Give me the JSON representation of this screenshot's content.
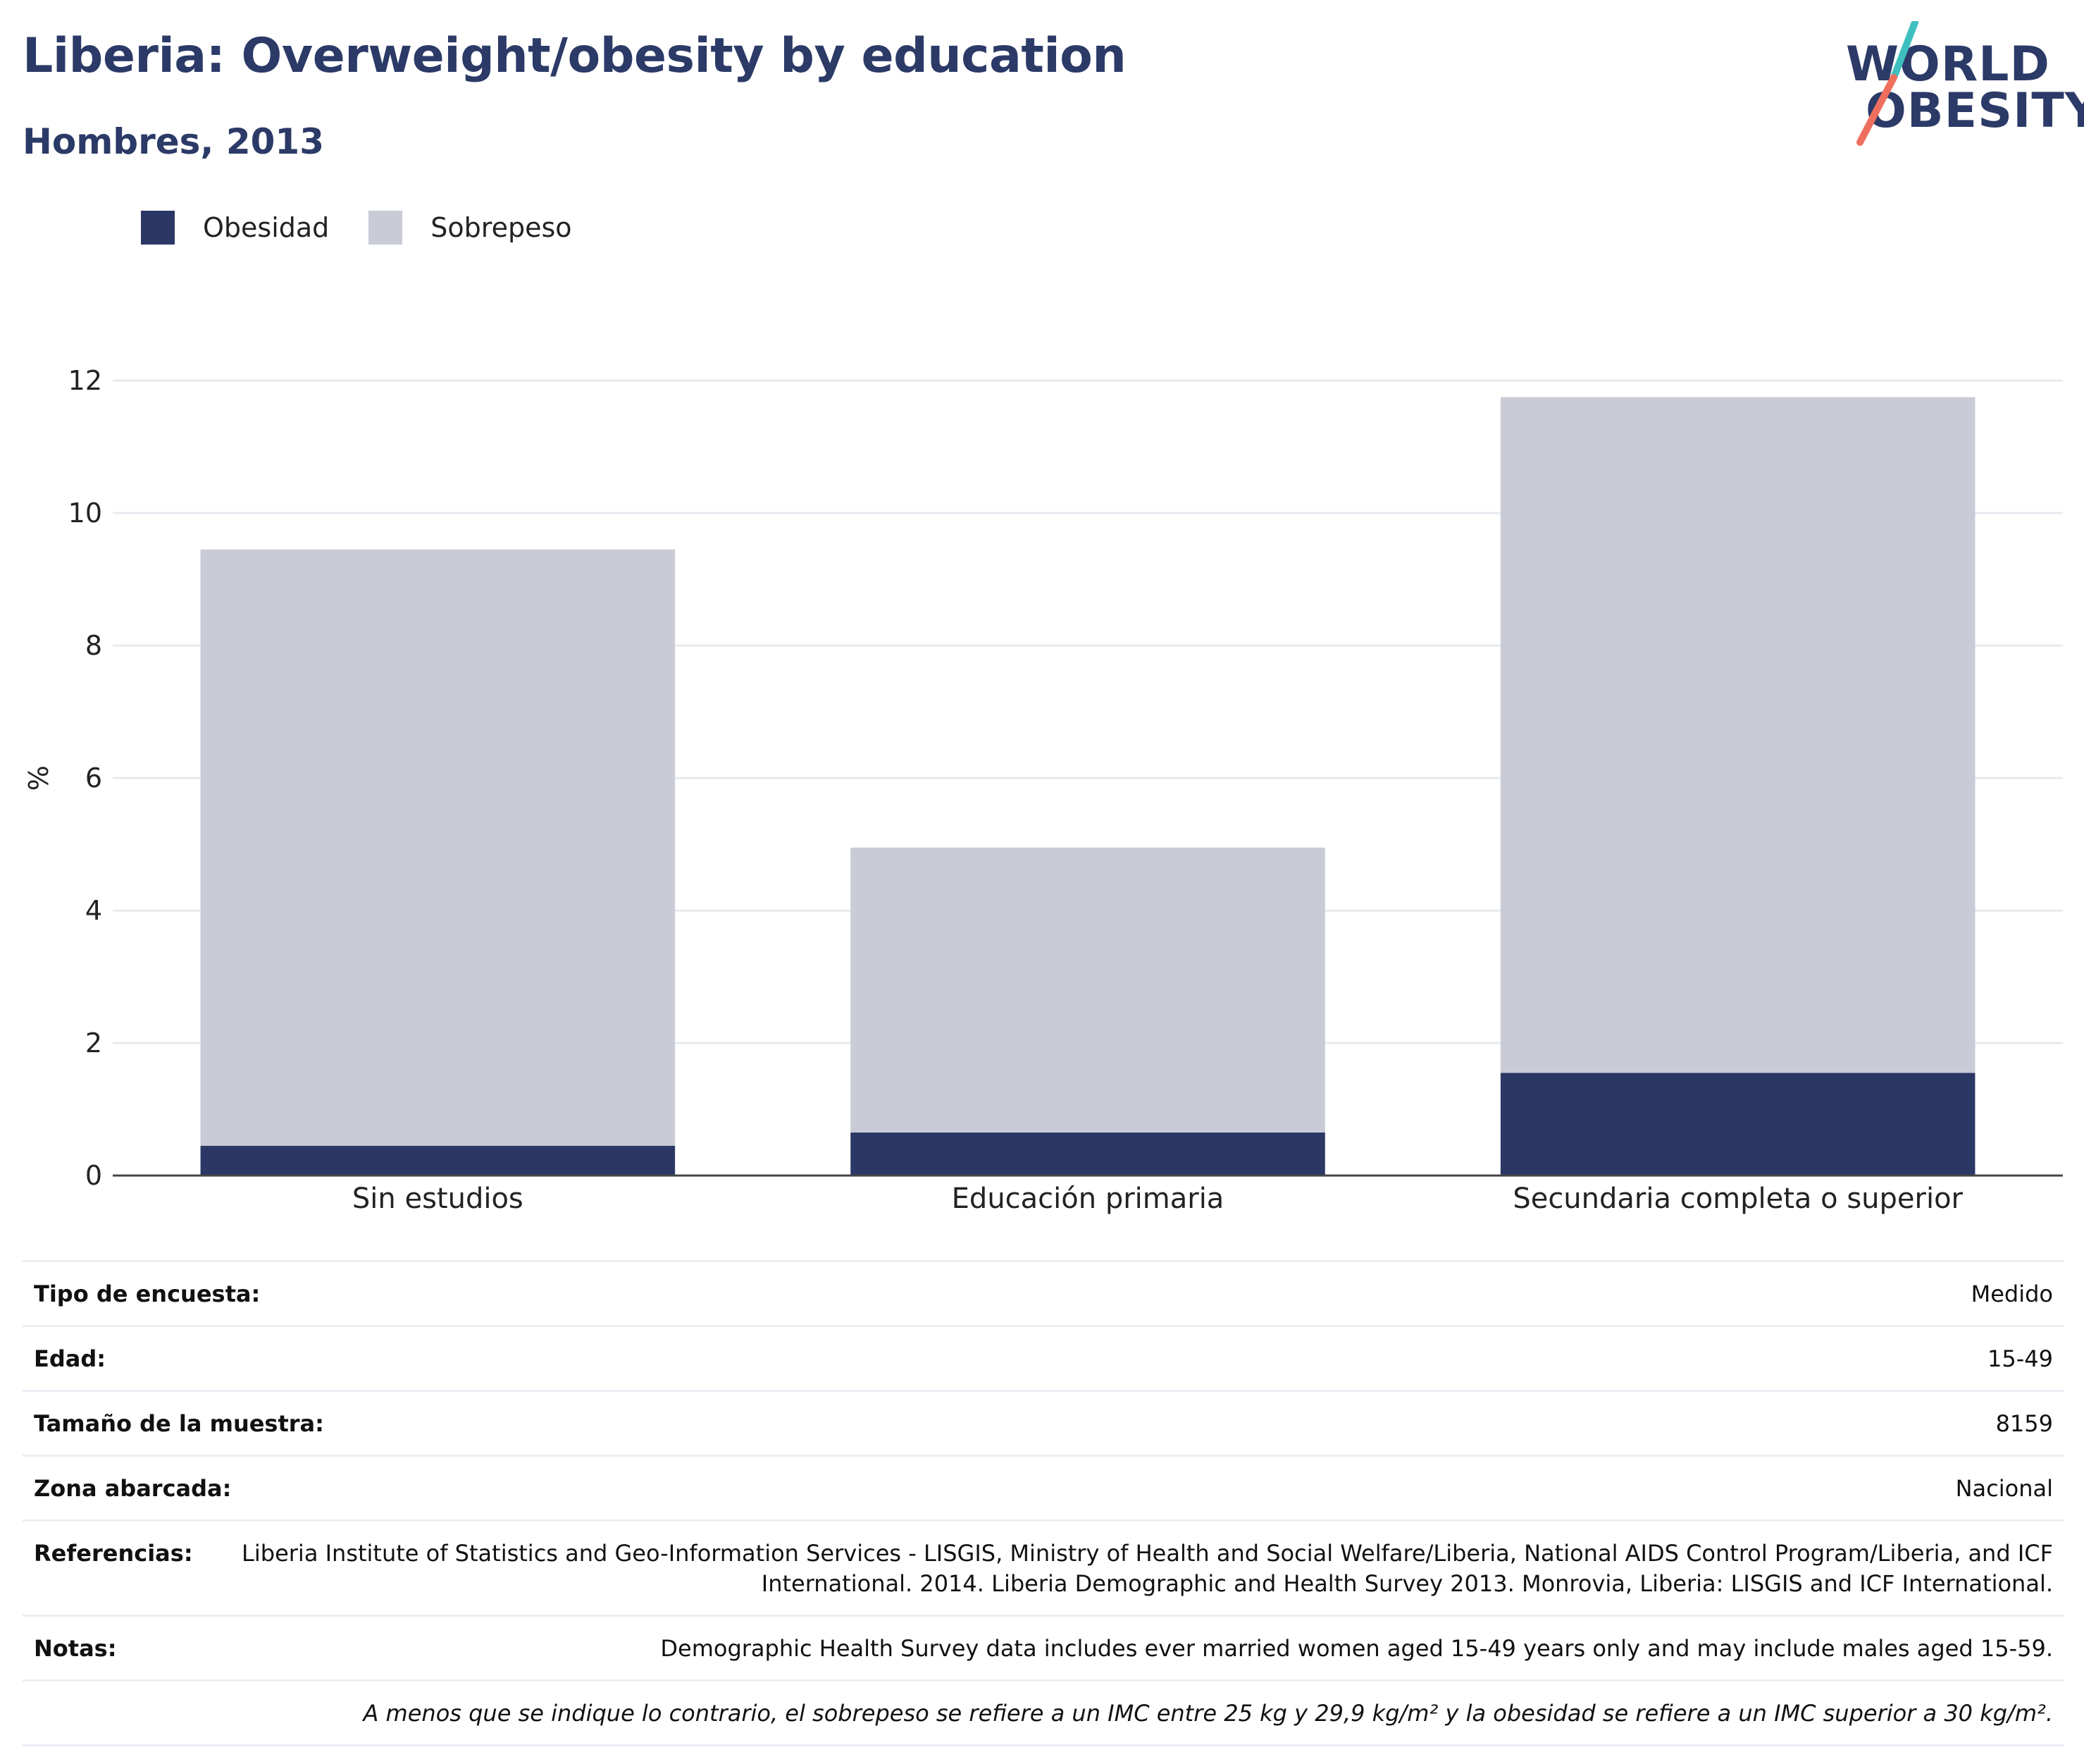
{
  "header": {
    "title": "Liberia: Overweight/obesity by education",
    "subtitle": "Hombres, 2013"
  },
  "logo": {
    "line1": "WORLD",
    "line2": "OBESITY",
    "teal": "#3fbfbf",
    "coral": "#ef6f5e",
    "navy": "#2b3a67"
  },
  "chart_data": {
    "type": "bar",
    "stacked": true,
    "categories": [
      "Sin estudios",
      "Educación primaria",
      "Secundaria completa o superior"
    ],
    "series": [
      {
        "name": "Obesidad",
        "values": [
          0.45,
          0.65,
          1.55
        ],
        "color": "#2b3765"
      },
      {
        "name": "Sobrepeso",
        "values": [
          9.0,
          4.3,
          10.2
        ],
        "color": "#c9cbd7"
      }
    ],
    "ylabel": "%",
    "xlabel": "",
    "ylim": [
      0,
      12
    ],
    "yticks": [
      0,
      2,
      4,
      6,
      8,
      10,
      12
    ],
    "grid": true,
    "legend_position": "top-left"
  },
  "meta": {
    "rows": [
      {
        "key": "Tipo de encuesta:",
        "value": "Medido"
      },
      {
        "key": "Edad:",
        "value": "15-49"
      },
      {
        "key": "Tamaño de la muestra:",
        "value": "8159"
      },
      {
        "key": "Zona abarcada:",
        "value": "Nacional"
      },
      {
        "key": "Referencias:",
        "value": "Liberia Institute of Statistics and Geo-Information Services - LISGIS, Ministry of Health and Social Welfare/Liberia, National AIDS Control Program/Liberia, and ICF International. 2014. Liberia Demographic and Health Survey 2013. Monrovia, Liberia: LISGIS and ICF International."
      },
      {
        "key": "Notas:",
        "value": "Demographic Health Survey data includes ever married women aged 15-49 years only and may include males aged 15-59."
      }
    ],
    "footnote": "A menos que se indique lo contrario, el sobrepeso se refiere a un IMC entre 25 kg y 29,9 kg/m² y la obesidad se refiere a un IMC superior a 30 kg/m²."
  }
}
